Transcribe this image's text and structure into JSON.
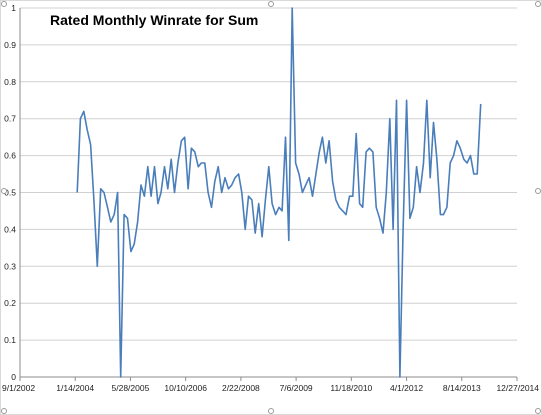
{
  "chart_data": {
    "type": "line",
    "title": "Rated Monthly Winrate for Sum",
    "xlabel": "",
    "ylabel": "",
    "x_start": "2002-09-01",
    "x_end": "2014-12-27",
    "ylim": [
      0,
      1
    ],
    "y_ticks": [
      "0",
      "0.1",
      "0.2",
      "0.3",
      "0.4",
      "0.5",
      "0.6",
      "0.7",
      "0.8",
      "0.9",
      "1"
    ],
    "x_ticks": [
      "9/1/2002",
      "1/14/2004",
      "5/28/2005",
      "10/10/2006",
      "2/22/2008",
      "7/6/2009",
      "11/18/2010",
      "4/1/2012",
      "8/14/2013",
      "12/27/2014"
    ],
    "grid": "horizontal",
    "legend": "none",
    "line_color": "#4a7ebb",
    "series": [
      {
        "x": [
          "2004-02-01",
          "2004-03-01",
          "2004-04-01",
          "2004-05-01",
          "2004-06-01",
          "2004-07-01",
          "2004-08-01",
          "2004-09-01",
          "2004-10-01",
          "2004-11-01",
          "2004-12-01",
          "2005-01-01",
          "2005-02-01",
          "2005-03-01",
          "2005-04-01",
          "2005-05-01",
          "2005-06-01",
          "2005-07-01",
          "2005-08-01",
          "2005-09-01",
          "2005-10-01",
          "2005-11-01",
          "2005-12-01",
          "2006-01-01",
          "2006-02-01",
          "2006-03-01",
          "2006-04-01",
          "2006-05-01",
          "2006-06-01",
          "2006-07-01",
          "2006-08-01",
          "2006-09-01",
          "2006-10-01",
          "2006-11-01",
          "2006-12-01",
          "2007-01-01",
          "2007-02-01",
          "2007-03-01",
          "2007-04-01",
          "2007-05-01",
          "2007-06-01",
          "2007-07-01",
          "2007-08-01",
          "2007-09-01",
          "2007-10-01",
          "2007-11-01",
          "2007-12-01",
          "2008-01-01",
          "2008-02-01",
          "2008-03-01",
          "2008-04-01",
          "2008-05-01",
          "2008-06-01",
          "2008-07-01",
          "2008-08-01",
          "2008-09-01",
          "2008-10-01",
          "2008-11-01",
          "2008-12-01",
          "2009-01-01",
          "2009-02-01",
          "2009-03-01",
          "2009-04-01",
          "2009-05-01",
          "2009-06-01",
          "2009-07-01",
          "2009-08-01",
          "2009-09-01",
          "2009-10-01",
          "2009-11-01",
          "2009-12-01",
          "2010-01-01",
          "2010-02-01",
          "2010-03-01",
          "2010-04-01",
          "2010-05-01",
          "2010-06-01",
          "2010-07-01",
          "2010-08-01",
          "2010-09-01",
          "2010-10-01",
          "2010-11-01",
          "2010-12-01",
          "2011-01-01",
          "2011-02-01",
          "2011-03-01",
          "2011-04-01",
          "2011-05-01",
          "2011-06-01",
          "2011-07-01",
          "2011-08-01",
          "2011-09-01",
          "2011-10-01",
          "2011-11-01",
          "2011-12-01",
          "2012-01-01",
          "2012-02-01",
          "2012-03-01",
          "2012-04-01",
          "2012-05-01",
          "2012-06-01",
          "2012-07-01",
          "2012-08-01",
          "2012-09-01",
          "2012-10-01",
          "2012-11-01",
          "2012-12-01",
          "2013-01-01",
          "2013-02-01",
          "2013-03-01",
          "2013-04-01",
          "2013-05-01",
          "2013-06-01",
          "2013-07-01",
          "2013-08-01",
          "2013-09-01",
          "2013-10-01",
          "2013-11-01",
          "2013-12-01",
          "2014-01-01",
          "2014-02-01"
        ],
        "values": [
          0.5,
          0.7,
          0.72,
          0.67,
          0.63,
          0.48,
          0.3,
          0.51,
          0.5,
          0.46,
          0.42,
          0.44,
          0.5,
          0.0,
          0.44,
          0.43,
          0.34,
          0.36,
          0.42,
          0.52,
          0.49,
          0.57,
          0.49,
          0.57,
          0.47,
          0.5,
          0.57,
          0.51,
          0.59,
          0.5,
          0.58,
          0.64,
          0.65,
          0.51,
          0.62,
          0.61,
          0.57,
          0.58,
          0.58,
          0.5,
          0.46,
          0.53,
          0.57,
          0.5,
          0.54,
          0.51,
          0.52,
          0.54,
          0.55,
          0.5,
          0.4,
          0.49,
          0.48,
          0.39,
          0.47,
          0.38,
          0.48,
          0.57,
          0.47,
          0.44,
          0.46,
          0.45,
          0.65,
          0.37,
          1.0,
          0.58,
          0.55,
          0.5,
          0.52,
          0.54,
          0.49,
          0.55,
          0.61,
          0.65,
          0.58,
          0.64,
          0.53,
          0.48,
          0.46,
          0.45,
          0.44,
          0.49,
          0.49,
          0.66,
          0.47,
          0.46,
          0.61,
          0.62,
          0.61,
          0.46,
          0.43,
          0.39,
          0.5,
          0.7,
          0.4,
          0.75,
          0.0,
          0.4,
          0.75,
          0.43,
          0.46,
          0.57,
          0.5,
          0.58,
          0.75,
          0.54,
          0.69,
          0.59,
          0.44,
          0.44,
          0.46,
          0.58,
          0.6,
          0.64,
          0.62,
          0.59,
          0.58,
          0.6,
          0.55,
          0.55,
          0.74
        ]
      }
    ]
  }
}
